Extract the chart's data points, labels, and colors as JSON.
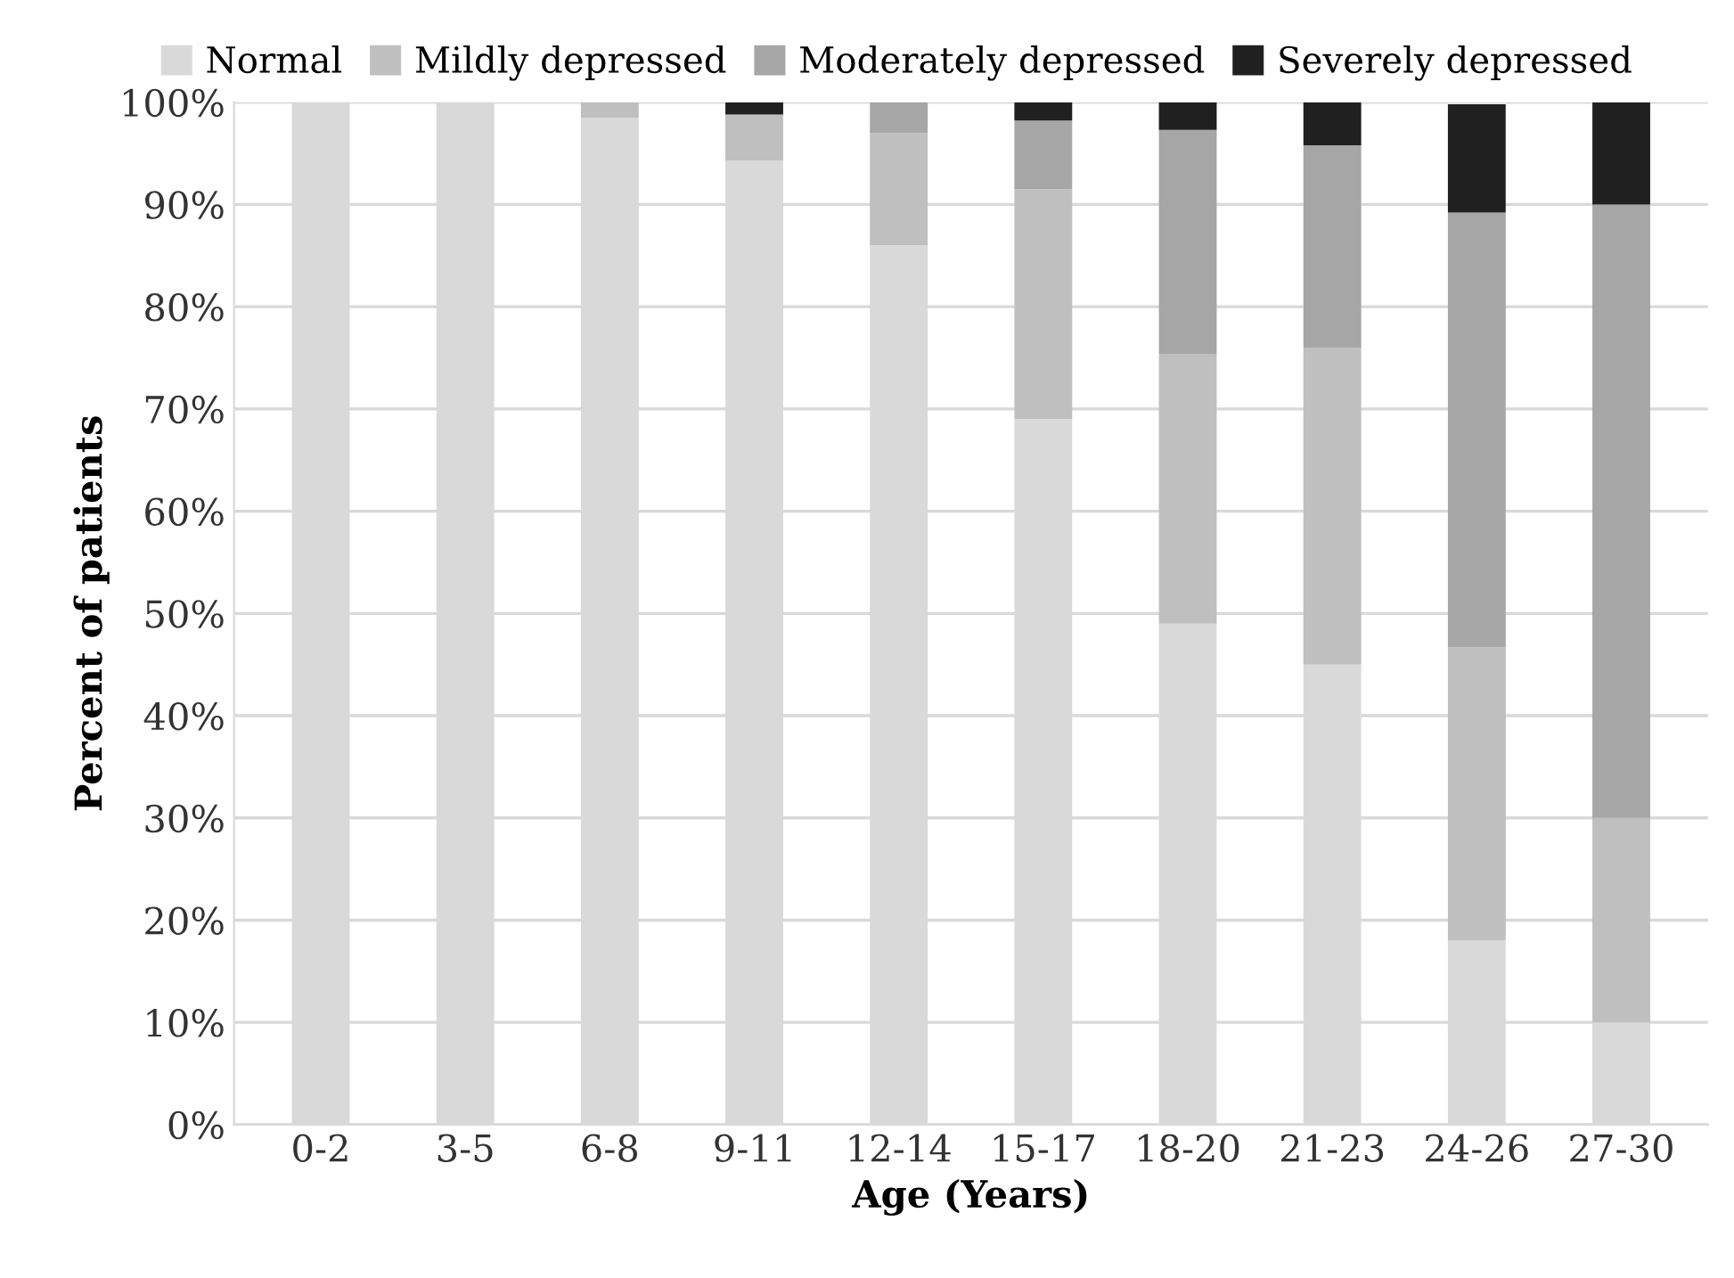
{
  "chart_data": {
    "type": "bar",
    "stacked": true,
    "xlabel": "Age (Years)",
    "ylabel": "Percent of patients",
    "categories": [
      "0-2",
      "3-5",
      "6-8",
      "9-11",
      "12-14",
      "15-17",
      "18-20",
      "21-23",
      "24-26",
      "27-30"
    ],
    "series": [
      {
        "name": "Normal",
        "color": "#d9d9d9",
        "values": [
          100,
          100,
          98.5,
          94.3,
          86,
          69,
          49,
          45,
          18,
          10
        ]
      },
      {
        "name": "Mildly depressed",
        "color": "#bfbfbf",
        "values": [
          0,
          0,
          1.5,
          4.5,
          11,
          22.5,
          26.4,
          31,
          28.7,
          20
        ]
      },
      {
        "name": "Moderately depressed",
        "color": "#a6a6a6",
        "values": [
          0,
          0,
          0,
          0,
          3,
          6.7,
          21.9,
          19.8,
          42.5,
          60
        ]
      },
      {
        "name": "Severely depressed",
        "color": "#202020",
        "values": [
          0,
          0,
          0,
          1.2,
          0,
          1.8,
          2.7,
          4.2,
          10.6,
          10
        ]
      }
    ],
    "ylim": [
      0,
      100
    ],
    "yticks": [
      {
        "value": 0,
        "label": "0%"
      },
      {
        "value": 10,
        "label": "10%"
      },
      {
        "value": 20,
        "label": "20%"
      },
      {
        "value": 30,
        "label": "30%"
      },
      {
        "value": 40,
        "label": "40%"
      },
      {
        "value": 50,
        "label": "50%"
      },
      {
        "value": 60,
        "label": "60%"
      },
      {
        "value": 70,
        "label": "70%"
      },
      {
        "value": 80,
        "label": "80%"
      },
      {
        "value": 90,
        "label": "90%"
      },
      {
        "value": 100,
        "label": "100%"
      }
    ],
    "grid": "y",
    "legend": "top"
  }
}
